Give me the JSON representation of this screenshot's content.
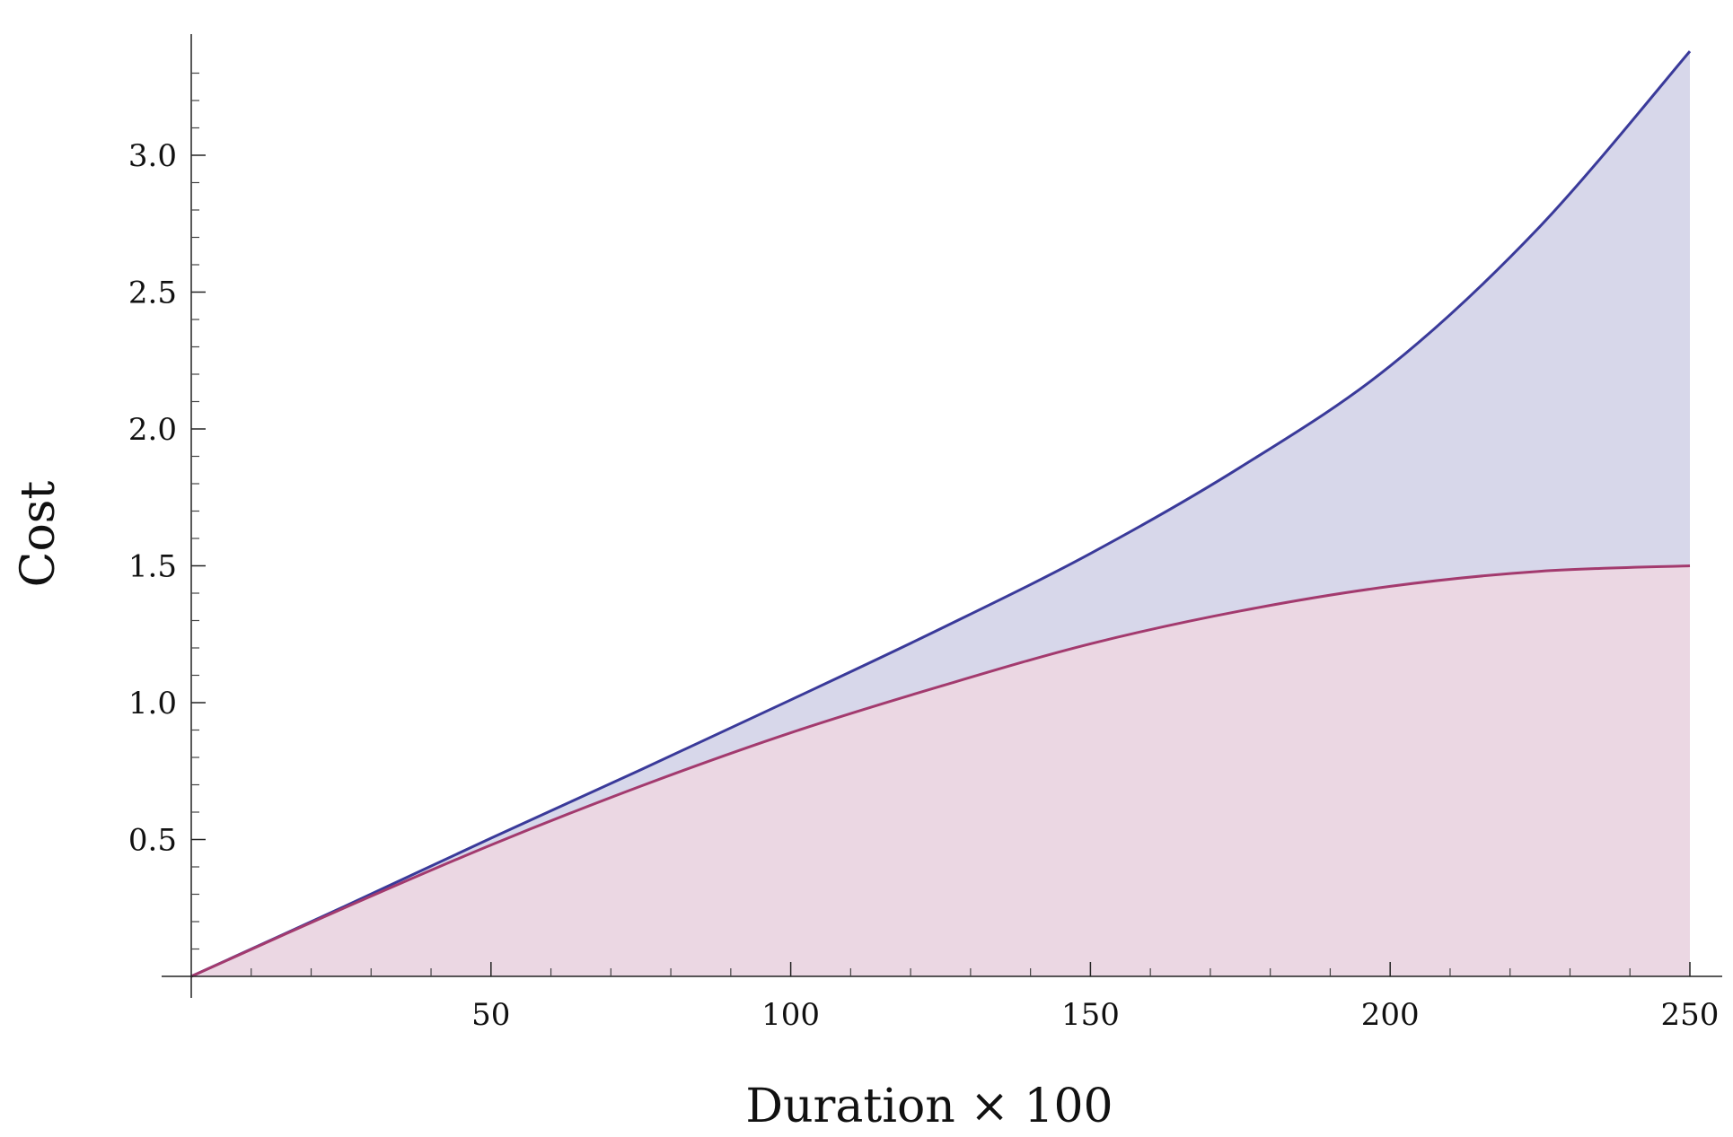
{
  "chart_data": {
    "type": "area",
    "title": "",
    "xlabel": "Duration × 100",
    "ylabel": "Cost",
    "xlim": [
      0,
      250
    ],
    "ylim": [
      0,
      3.4
    ],
    "x_ticks": [
      50,
      100,
      150,
      200,
      250
    ],
    "x_tick_labels": [
      "50",
      "100",
      "150",
      "200",
      "250"
    ],
    "x_minor_step": 10,
    "y_ticks": [
      0.5,
      1.0,
      1.5,
      2.0,
      2.5,
      3.0
    ],
    "y_tick_labels": [
      "0.5",
      "1.0",
      "1.5",
      "2.0",
      "2.5",
      "3.0"
    ],
    "y_minor_step": 0.1,
    "grid": false,
    "legend": "none",
    "x": [
      0,
      25,
      50,
      75,
      100,
      125,
      150,
      175,
      200,
      225,
      250
    ],
    "series": [
      {
        "values": [
          0,
          0.25,
          0.505,
          0.755,
          1.01,
          1.27,
          1.545,
          1.86,
          2.23,
          2.74,
          3.38
        ],
        "color": "#3a3a9a",
        "fill": "#d7d7ea"
      },
      {
        "values": [
          0,
          0.245,
          0.48,
          0.695,
          0.89,
          1.06,
          1.215,
          1.335,
          1.425,
          1.48,
          1.5
        ],
        "color": "#a33a6e",
        "fill": "#ebd7e3"
      }
    ]
  }
}
